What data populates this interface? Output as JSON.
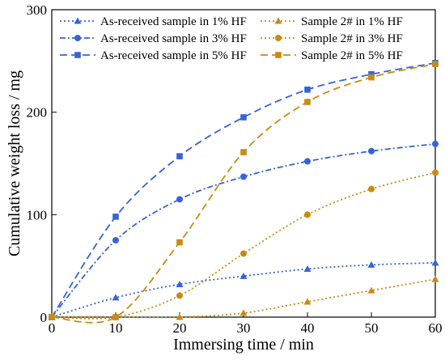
{
  "chart_data": {
    "type": "line",
    "xlabel": "Immersing time / min",
    "ylabel": "Cumulative weight loss / mg",
    "xlim": [
      0,
      60
    ],
    "ylim": [
      0,
      300
    ],
    "xticks": [
      "0",
      "10",
      "20",
      "30",
      "40",
      "50",
      "60"
    ],
    "yticks": [
      "0",
      "100",
      "200",
      "300"
    ],
    "grid": false,
    "legend_position": "top",
    "series": [
      {
        "name": "As-received sample in 1% HF",
        "color": "#3563d8",
        "marker": "triangle",
        "dash": "dotted",
        "x": [
          0,
          10,
          20,
          30,
          40,
          50,
          60
        ],
        "y": [
          0,
          19,
          32,
          40,
          47,
          51,
          53
        ]
      },
      {
        "name": "As-received sample in 3% HF",
        "color": "#3563d8",
        "marker": "circle",
        "dash": "dashdot",
        "x": [
          0,
          10,
          20,
          30,
          40,
          50,
          60
        ],
        "y": [
          0,
          75,
          115,
          137,
          152,
          162,
          169
        ]
      },
      {
        "name": "As-received sample in 5% HF",
        "color": "#3563d8",
        "marker": "square",
        "dash": "dashed",
        "x": [
          0,
          10,
          20,
          30,
          40,
          50,
          60
        ],
        "y": [
          0,
          98,
          157,
          195,
          222,
          237,
          248
        ]
      },
      {
        "name": "Sample 2# in 1% HF",
        "color": "#c98a12",
        "marker": "triangle",
        "dash": "dotted",
        "x": [
          0,
          10,
          20,
          30,
          40,
          50,
          60
        ],
        "y": [
          0,
          0,
          0,
          4,
          15,
          26,
          37
        ]
      },
      {
        "name": "Sample 2# in 3% HF",
        "color": "#c98a12",
        "marker": "circle",
        "dash": "dotted",
        "x": [
          0,
          10,
          20,
          30,
          40,
          50,
          60
        ],
        "y": [
          0,
          0,
          21,
          62,
          100,
          125,
          141
        ]
      },
      {
        "name": "Sample 2# in 5% HF",
        "color": "#c98a12",
        "marker": "square",
        "dash": "dashed",
        "x": [
          0,
          10,
          20,
          30,
          40,
          50,
          60
        ],
        "y": [
          0,
          0,
          73,
          161,
          210,
          234,
          247
        ]
      }
    ]
  }
}
